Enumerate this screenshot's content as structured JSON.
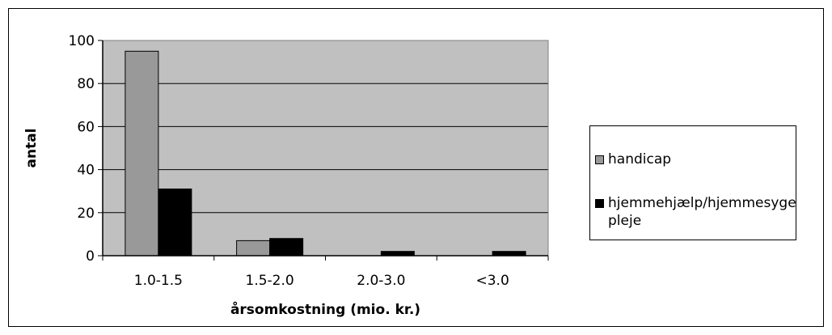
{
  "chart_data": {
    "type": "bar",
    "categories": [
      "1.0-1.5",
      "1.5-2.0",
      "2.0-3.0",
      "<3.0"
    ],
    "series": [
      {
        "name": "handicap",
        "values": [
          95,
          7,
          0,
          0
        ],
        "color": "#999999"
      },
      {
        "name": "hjemmehjælp/hjemmesygepleje",
        "values": [
          31,
          8,
          2,
          2
        ],
        "color": "#000000"
      }
    ],
    "xlabel": "årsomkostning (mio. kr.)",
    "ylabel": "antal",
    "ylim": [
      0,
      100
    ],
    "yticks": [
      "0",
      "20",
      "40",
      "60",
      "80",
      "100"
    ],
    "grid": true,
    "plot_background": "#c0c0c0",
    "legend_position": "right"
  }
}
